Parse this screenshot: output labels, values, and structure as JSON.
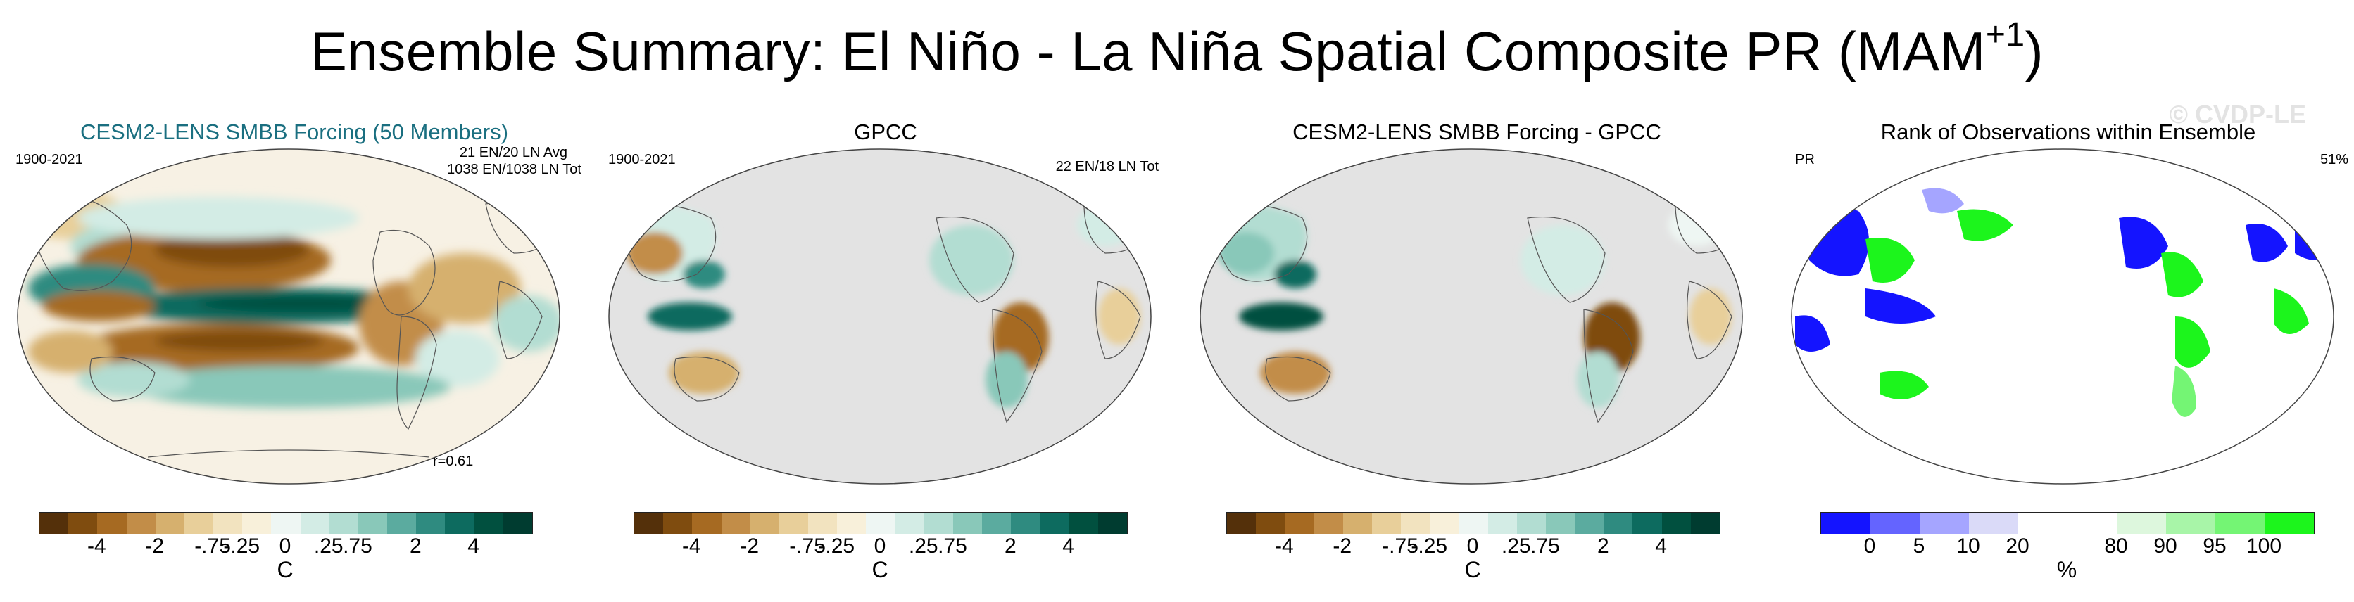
{
  "title": {
    "main": "Ensemble Summary: El Niño - La Niña Spatial Composite PR (MAM",
    "sup": "+1",
    "close": ")"
  },
  "watermark": "© CVDP-LE",
  "panels": [
    {
      "title": "CESM2-LENS SMBB Forcing (50 Members)",
      "left_text": "1900-2021",
      "right_text_1": "21 EN/20 LN Avg",
      "right_text_2": "1038 EN/1038 LN Tot",
      "bottom_text": "r=0.61",
      "colorbar_ticks": [
        "-4",
        "-2",
        "-.75",
        "-.25",
        "0",
        ".25",
        ".75",
        "2",
        "4"
      ],
      "unit": "C"
    },
    {
      "title": "GPCC",
      "left_text": "1900-2021",
      "right_text_1": "22 EN/18 LN Tot",
      "colorbar_ticks": [
        "-4",
        "-2",
        "-.75",
        "-.25",
        "0",
        ".25",
        ".75",
        "2",
        "4"
      ],
      "unit": "C"
    },
    {
      "title": "CESM2-LENS SMBB Forcing - GPCC",
      "colorbar_ticks": [
        "-4",
        "-2",
        "-.75",
        "-.25",
        "0",
        ".25",
        ".75",
        "2",
        "4"
      ],
      "unit": "C"
    },
    {
      "title": "Rank of Observations within Ensemble",
      "left_text": "PR",
      "right_text_1": "51%",
      "colorbar_ticks": [
        "0",
        "5",
        "10",
        "20",
        "80",
        "90",
        "95",
        "100"
      ],
      "unit": "%"
    }
  ],
  "colors": {
    "brbg": [
      "#54300a",
      "#7f4c0f",
      "#a66a22",
      "#c28d48",
      "#d6b06e",
      "#e8cf9a",
      "#f2e3bf",
      "#f8f0da",
      "#eef6f3",
      "#d3ece5",
      "#b2ddd2",
      "#89c8b9",
      "#5bab9f",
      "#2f8b80",
      "#0d6b5f",
      "#01503f",
      "#003c30"
    ],
    "rank": [
      "#1414ff",
      "#6464ff",
      "#a5a5ff",
      "#dadaf8",
      "#ffffff",
      "#ffffff",
      "#ddf7dd",
      "#a8f5a8",
      "#74f574",
      "#1cf51c"
    ],
    "missing": "#e3e3e3",
    "ocean_bg": "#f7f1e4"
  }
}
